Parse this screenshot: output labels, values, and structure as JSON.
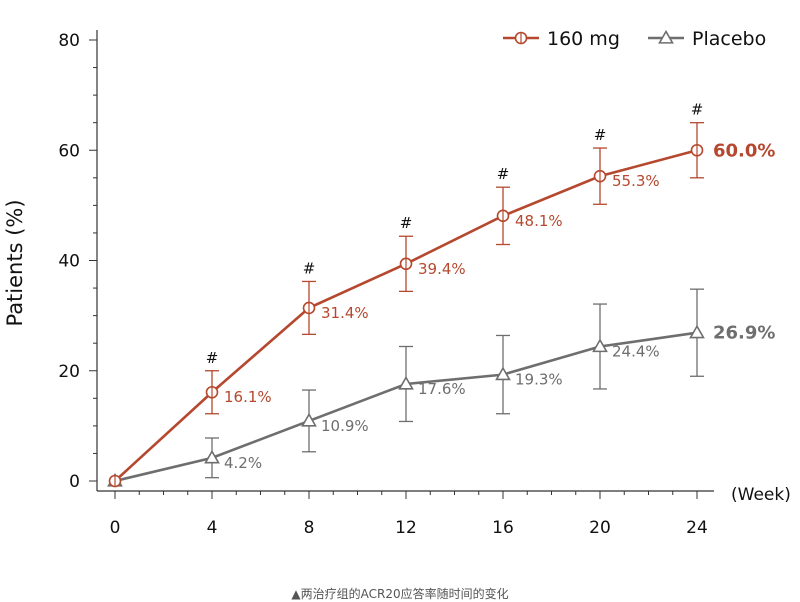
{
  "chart_data": {
    "type": "line",
    "xlabel": "(Week)",
    "ylabel": "Patients (%)",
    "x": [
      0,
      4,
      8,
      12,
      16,
      20,
      24
    ],
    "xticks": [
      "0",
      "4",
      "8",
      "12",
      "16",
      "20",
      "24"
    ],
    "yticks": [
      "0",
      "20",
      "40",
      "60",
      "80"
    ],
    "xlim": [
      0,
      24
    ],
    "ylim": [
      0,
      80
    ],
    "grid": false,
    "legend": "top-right",
    "series": [
      {
        "name": "160 mg",
        "color": "#b5482e",
        "marker": "circle",
        "values": [
          0,
          16.1,
          31.4,
          39.4,
          48.1,
          55.3,
          60.0
        ],
        "errors": [
          0,
          3.9,
          4.8,
          5.0,
          5.2,
          5.1,
          5.0
        ],
        "labels": [
          "",
          "16.1%",
          "31.4%",
          "39.4%",
          "48.1%",
          "55.3%",
          "60.0%"
        ],
        "significance": [
          "",
          "#",
          "#",
          "#",
          "#",
          "#",
          "#"
        ]
      },
      {
        "name": "Placebo",
        "color": "#6e6e6e",
        "marker": "triangle",
        "values": [
          0,
          4.2,
          10.9,
          17.6,
          19.3,
          24.4,
          26.9
        ],
        "errors": [
          0,
          3.6,
          5.6,
          6.8,
          7.1,
          7.7,
          7.9
        ],
        "labels": [
          "",
          "4.2%",
          "10.9%",
          "17.6%",
          "19.3%",
          "24.4%",
          "26.9%"
        ]
      }
    ]
  },
  "caption": "▲两治疗组的ACR20应答率随时间的变化"
}
